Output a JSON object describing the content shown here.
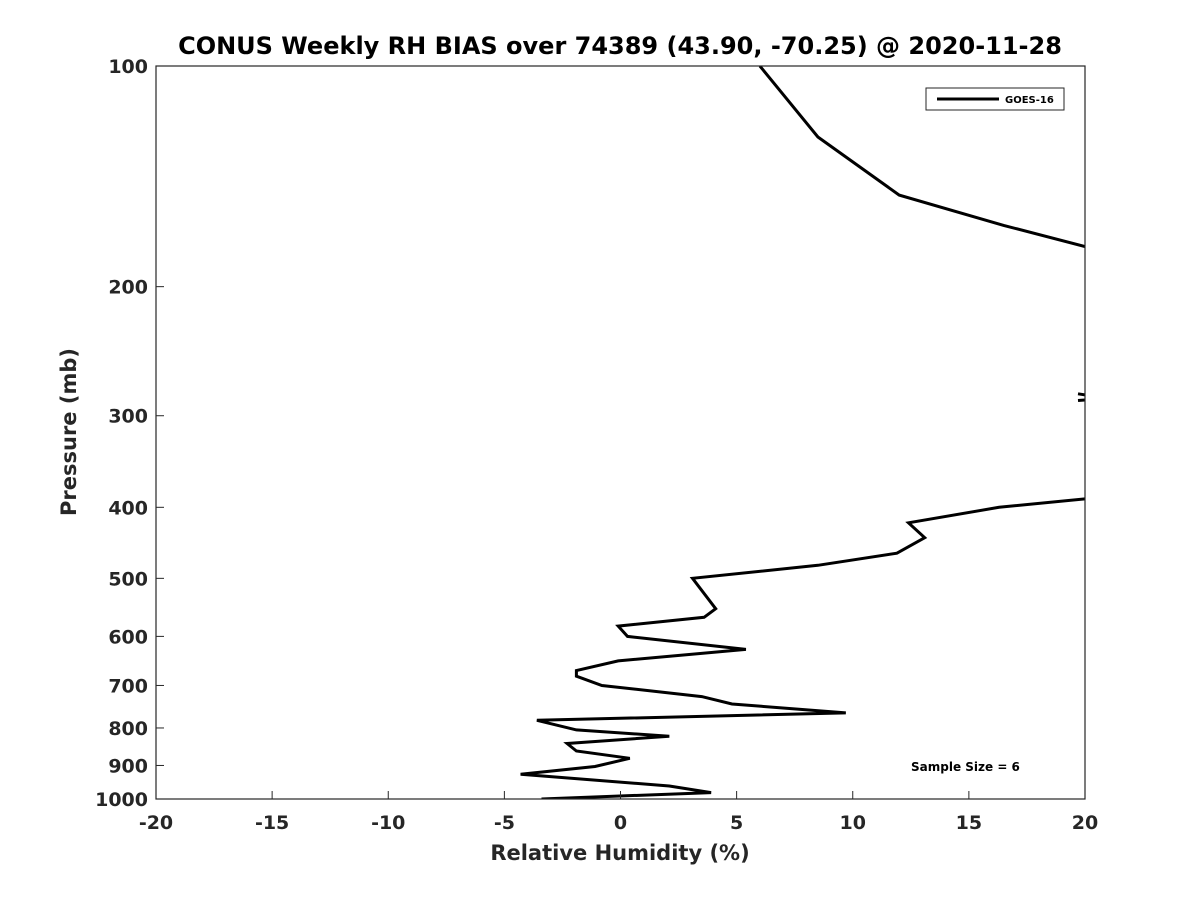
{
  "chart_data": {
    "type": "line",
    "title": "CONUS Weekly RH BIAS over 74389 (43.90, -70.25) @ 2020-11-28",
    "xlabel": "Relative Humidity (%)",
    "ylabel": "Pressure (mb)",
    "xlim": [
      -20,
      20
    ],
    "ylim": [
      1000,
      100
    ],
    "y_scale": "log",
    "y_direction": "reversed",
    "grid": false,
    "legend_position": "top-right",
    "xticks": [
      -20,
      -15,
      -10,
      -5,
      0,
      5,
      10,
      15,
      20
    ],
    "xtick_labels": [
      "-20",
      "-15",
      "-10",
      "-5",
      "0",
      "5",
      "10",
      "15",
      "20"
    ],
    "yticks": [
      100,
      200,
      300,
      400,
      500,
      600,
      700,
      800,
      900,
      1000
    ],
    "ytick_labels": [
      "100",
      "200",
      "300",
      "400",
      "500",
      "600",
      "700",
      "800",
      "900",
      "1000"
    ],
    "annotation": "Sample Size = 6",
    "series": [
      {
        "name": "GOES-16",
        "color": "#000000",
        "segments": [
          [
            [
              6.0,
              100
            ],
            [
              8.5,
              125
            ],
            [
              12.0,
              150
            ],
            [
              16.5,
              165
            ],
            [
              20.2,
              177
            ]
          ],
          [
            [
              19.7,
              280
            ],
            [
              20.3,
              282
            ],
            [
              20.3,
              285
            ],
            [
              19.7,
              286
            ]
          ],
          [
            [
              20.2,
              389
            ],
            [
              16.3,
              400
            ],
            [
              12.4,
              420
            ],
            [
              13.1,
              440
            ],
            [
              11.9,
              462
            ],
            [
              8.5,
              480
            ],
            [
              3.1,
              500
            ],
            [
              4.1,
              550
            ],
            [
              3.6,
              565
            ],
            [
              -0.1,
              581
            ],
            [
              0.3,
              600
            ],
            [
              5.4,
              625
            ],
            [
              -0.1,
              648
            ],
            [
              -1.9,
              668
            ],
            [
              -1.9,
              680
            ],
            [
              -0.8,
              700
            ],
            [
              3.5,
              725
            ],
            [
              4.8,
              742
            ],
            [
              9.7,
              763
            ],
            [
              -3.6,
              781
            ],
            [
              -1.9,
              805
            ],
            [
              2.1,
              821
            ],
            [
              -2.3,
              840
            ],
            [
              -1.9,
              860
            ],
            [
              0.4,
              880
            ],
            [
              -1.1,
              903
            ],
            [
              -4.3,
              925
            ],
            [
              2.1,
              960
            ],
            [
              3.9,
              980
            ],
            [
              -3.4,
              1000
            ]
          ]
        ]
      }
    ]
  }
}
